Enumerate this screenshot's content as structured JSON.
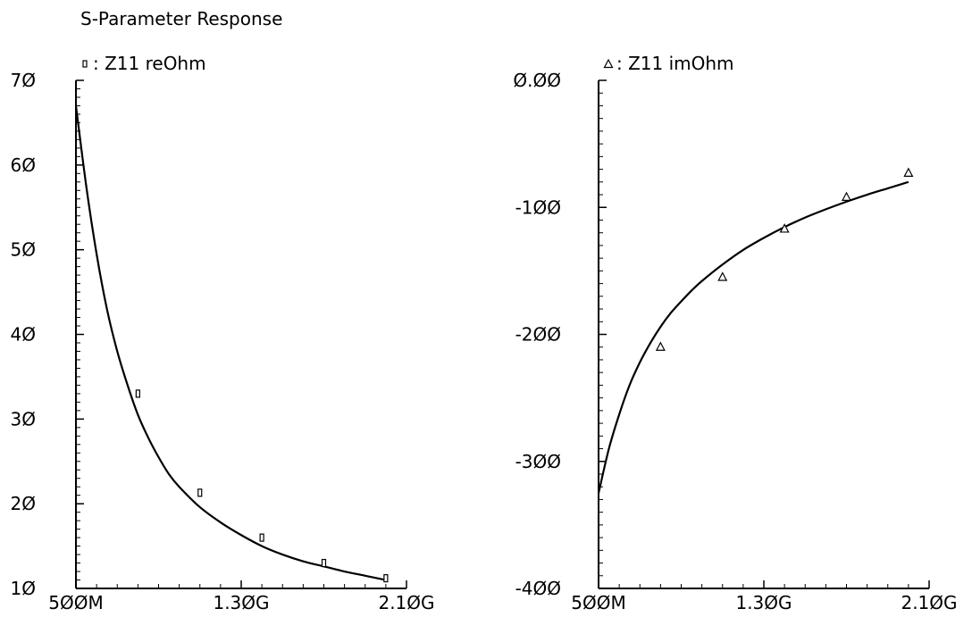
{
  "title": "S-Parameter Response",
  "chart_data": [
    {
      "type": "line",
      "legend": "Z11 reOhm",
      "marker": "rectangle",
      "x_unit": "Hz",
      "xlim": [
        500000000,
        2100000000
      ],
      "ylim": [
        10,
        70
      ],
      "x_ticks": [
        500000000,
        1300000000,
        2100000000
      ],
      "x_tick_labels": [
        "5ØØM",
        "1.3ØG",
        "2.1ØG"
      ],
      "y_ticks": [
        70,
        60,
        50,
        40,
        30,
        20,
        10
      ],
      "y_tick_labels": [
        "7Ø",
        "6Ø",
        "5Ø",
        "4Ø",
        "3Ø",
        "2Ø",
        "1Ø"
      ],
      "x": [
        500000000,
        550000000,
        600000000,
        650000000,
        700000000,
        750000000,
        800000000,
        850000000,
        900000000,
        950000000,
        1000000000,
        1100000000,
        1200000000,
        1300000000,
        1400000000,
        1500000000,
        1600000000,
        1700000000,
        1800000000,
        1900000000,
        2000000000
      ],
      "values": [
        67,
        57.5,
        49.5,
        43,
        38,
        34,
        30.5,
        27.8,
        25.5,
        23.5,
        22,
        19.6,
        17.8,
        16.3,
        15,
        14,
        13.2,
        12.6,
        12,
        11.5,
        11
      ],
      "markers_x": [
        800000000,
        1100000000,
        1400000000,
        1700000000,
        2000000000
      ],
      "markers_y": [
        33,
        21.3,
        16,
        13,
        11.2
      ],
      "color": "#000000",
      "grid": false
    },
    {
      "type": "line",
      "legend": "Z11 imOhm",
      "marker": "triangle",
      "x_unit": "Hz",
      "xlim": [
        500000000,
        2100000000
      ],
      "ylim": [
        -400,
        0
      ],
      "x_ticks": [
        500000000,
        1300000000,
        2100000000
      ],
      "x_tick_labels": [
        "5ØØM",
        "1.3ØG",
        "2.1ØG"
      ],
      "y_ticks": [
        0,
        -100,
        -200,
        -300,
        -400
      ],
      "y_tick_labels": [
        "Ø.ØØ",
        "-1ØØ",
        "-2ØØ",
        "-3ØØ",
        "-4ØØ"
      ],
      "x": [
        500000000,
        550000000,
        600000000,
        650000000,
        700000000,
        750000000,
        800000000,
        850000000,
        900000000,
        950000000,
        1000000000,
        1100000000,
        1200000000,
        1300000000,
        1400000000,
        1500000000,
        1600000000,
        1700000000,
        1800000000,
        1900000000,
        2000000000
      ],
      "values": [
        -325,
        -290,
        -263,
        -240,
        -222,
        -207,
        -194,
        -183,
        -174,
        -165.5,
        -158,
        -145,
        -133.5,
        -124,
        -115.5,
        -108,
        -101.5,
        -95.5,
        -90,
        -85,
        -80
      ],
      "markers_x": [
        800000000,
        1100000000,
        1400000000,
        1700000000,
        2000000000
      ],
      "markers_y": [
        -210,
        -155,
        -117,
        -92,
        -73
      ],
      "color": "#000000",
      "grid": false
    }
  ]
}
